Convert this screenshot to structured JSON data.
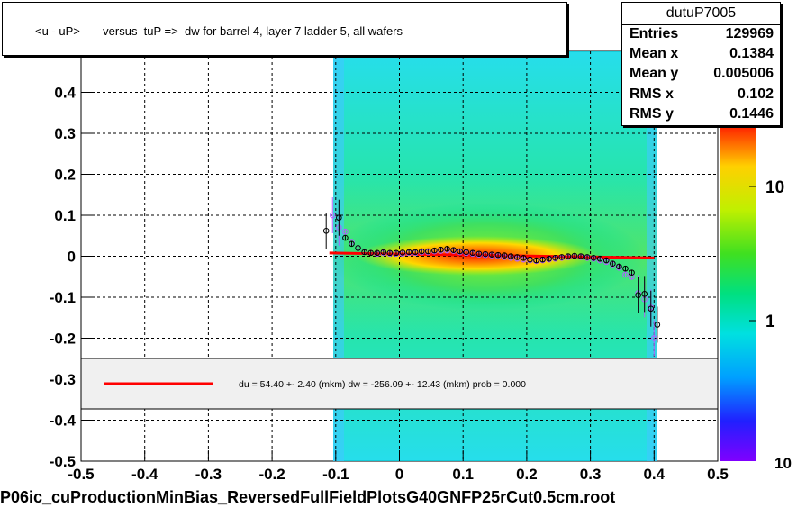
{
  "title": "<u - uP>       versus  tuP =>  dw for barrel 4, layer 7 ladder 5, all wafers",
  "stats": {
    "name": "dutuP7005",
    "rows": [
      {
        "label": "Entries",
        "value": "129969"
      },
      {
        "label": "Mean x",
        "value": "0.1384"
      },
      {
        "label": "Mean y",
        "value": "0.005006"
      },
      {
        "label": "RMS x",
        "value": "0.102"
      },
      {
        "label": "RMS y",
        "value": "0.1446"
      }
    ]
  },
  "fit_legend": "du =   54.40 +-  2.40 (mkm) dw = -256.09 +- 12.43 (mkm) prob = 0.000",
  "footer": "P06ic_cuProductionMinBias_ReversedFullFieldPlotsG40GNFP25rCut0.5cm.root",
  "colors": {
    "fit_line": "#ff0000",
    "frame": "#000000",
    "legend_bg": "#f0f0f0"
  },
  "chart_data": {
    "type": "heatmap",
    "title": "<u - uP>       versus  tuP =>  dw for barrel 4, layer 7 ladder 5, all wafers",
    "xlim": [
      -0.5,
      0.5
    ],
    "ylim": [
      -0.5,
      0.5
    ],
    "x_ticks": [
      -0.5,
      -0.4,
      -0.3,
      -0.2,
      -0.1,
      0,
      0.1,
      0.2,
      0.3,
      0.4,
      0.5
    ],
    "x_tick_labels": [
      "-0.5",
      "-0.4",
      "-0.3",
      "-0.2",
      "-0.1",
      "0",
      "0.1",
      "0.2",
      "0.3",
      "0.4",
      "0.5"
    ],
    "y_ticks": [
      -0.5,
      -0.4,
      -0.3,
      -0.2,
      -0.1,
      0,
      0.1,
      0.2,
      0.3,
      0.4
    ],
    "y_tick_labels": [
      "-0.5",
      "-0.4",
      "-0.3",
      "-0.2",
      "-0.1",
      "0",
      "0.1",
      "0.2",
      "0.3",
      "0.4"
    ],
    "grid": true,
    "z_scale": "log",
    "z_tick_labels": [
      "1",
      "10"
    ],
    "z_bottom_label": "10",
    "data_x_range": [
      -0.1,
      0.4
    ],
    "fit_line": {
      "x": [
        -0.11,
        0.4
      ],
      "y": [
        0.008,
        -0.004
      ]
    },
    "profile_black": {
      "x": [
        -0.115,
        -0.095,
        -0.085,
        -0.075,
        -0.065,
        -0.055,
        -0.045,
        -0.035,
        -0.025,
        -0.015,
        -0.005,
        0.005,
        0.015,
        0.025,
        0.035,
        0.045,
        0.055,
        0.065,
        0.075,
        0.085,
        0.095,
        0.105,
        0.115,
        0.125,
        0.135,
        0.145,
        0.155,
        0.165,
        0.175,
        0.185,
        0.195,
        0.205,
        0.215,
        0.225,
        0.235,
        0.245,
        0.255,
        0.265,
        0.275,
        0.285,
        0.295,
        0.305,
        0.315,
        0.325,
        0.335,
        0.345,
        0.355,
        0.365,
        0.375,
        0.385,
        0.395,
        0.405
      ],
      "y": [
        0.062,
        0.094,
        0.045,
        0.03,
        0.02,
        0.01,
        0.008,
        0.008,
        0.01,
        0.008,
        0.008,
        0.009,
        0.01,
        0.01,
        0.012,
        0.012,
        0.014,
        0.016,
        0.018,
        0.015,
        0.012,
        0.01,
        0.008,
        0.006,
        0.005,
        0.004,
        0.003,
        0.002,
        0.0,
        -0.002,
        -0.004,
        -0.008,
        -0.01,
        -0.008,
        -0.006,
        -0.004,
        -0.002,
        0.0,
        0.001,
        0.0,
        -0.002,
        -0.004,
        -0.006,
        -0.01,
        -0.018,
        -0.025,
        -0.03,
        -0.04,
        -0.095,
        -0.092,
        -0.128,
        -0.167
      ]
    },
    "profile_violet": {
      "x": [
        -0.105,
        -0.095,
        -0.085,
        -0.075,
        -0.065,
        -0.055,
        -0.045,
        -0.035,
        -0.025,
        -0.015,
        -0.005,
        0.005,
        0.015,
        0.025,
        0.035,
        0.045,
        0.055,
        0.065,
        0.075,
        0.085,
        0.095,
        0.105,
        0.115,
        0.125,
        0.135,
        0.145,
        0.155,
        0.165,
        0.175,
        0.185,
        0.195,
        0.205,
        0.215,
        0.225,
        0.235,
        0.245,
        0.255,
        0.265,
        0.275,
        0.285,
        0.295,
        0.305,
        0.315,
        0.325,
        0.335,
        0.345,
        0.355,
        0.365,
        0.375,
        0.385,
        0.395,
        0.4
      ],
      "y": [
        0.1,
        0.07,
        0.06,
        0.035,
        0.02,
        0.01,
        0.008,
        0.006,
        0.008,
        0.006,
        0.006,
        0.006,
        0.008,
        0.008,
        0.01,
        0.01,
        0.012,
        0.013,
        0.014,
        0.013,
        0.01,
        0.008,
        0.006,
        0.004,
        0.003,
        0.002,
        0.0,
        -0.002,
        -0.004,
        -0.006,
        -0.008,
        -0.01,
        -0.012,
        -0.01,
        -0.008,
        -0.006,
        -0.004,
        -0.002,
        0.0,
        -0.002,
        -0.004,
        -0.006,
        -0.01,
        -0.014,
        -0.02,
        -0.028,
        -0.045,
        -0.05,
        -0.09,
        -0.105,
        -0.125,
        -0.2
      ]
    }
  }
}
